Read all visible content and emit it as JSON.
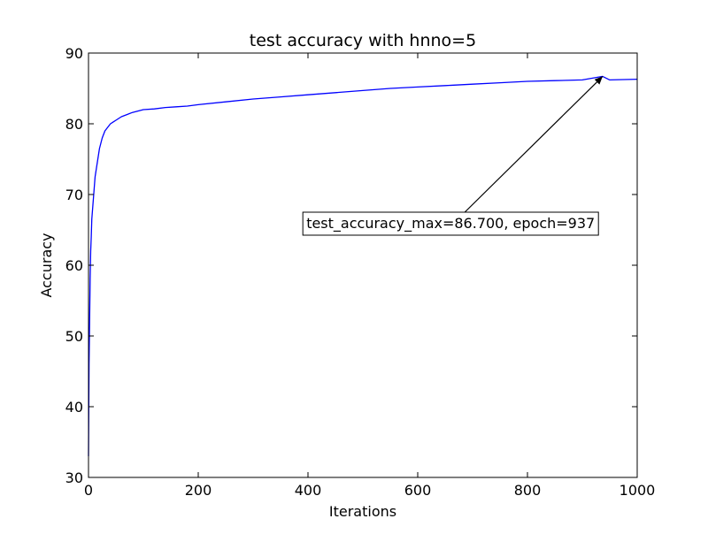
{
  "chart_data": {
    "type": "line",
    "title": "test accuracy with hnno=5",
    "xlabel": "Iterations",
    "ylabel": "Accuracy",
    "xlim": [
      0,
      1000
    ],
    "ylim": [
      30,
      90
    ],
    "xticks": [
      0,
      200,
      400,
      600,
      800,
      1000
    ],
    "yticks": [
      30,
      40,
      50,
      60,
      70,
      80,
      90
    ],
    "grid": false,
    "legend": "none",
    "series": [
      {
        "color": "#0000ff",
        "x": [
          0,
          1,
          2,
          3,
          4,
          5,
          6,
          8,
          10,
          12,
          15,
          18,
          20,
          25,
          30,
          35,
          40,
          50,
          60,
          70,
          80,
          90,
          100,
          120,
          140,
          160,
          180,
          200,
          250,
          300,
          350,
          400,
          450,
          500,
          550,
          600,
          650,
          700,
          750,
          800,
          850,
          900,
          937,
          950,
          1000
        ],
        "y": [
          33,
          46,
          52,
          58,
          62,
          64,
          66.5,
          68.5,
          70.5,
          72.5,
          74,
          75.5,
          76.5,
          78,
          79,
          79.5,
          80,
          80.5,
          81,
          81.3,
          81.6,
          81.8,
          82,
          82.1,
          82.3,
          82.4,
          82.5,
          82.7,
          83.1,
          83.5,
          83.8,
          84.1,
          84.4,
          84.7,
          85,
          85.2,
          85.4,
          85.6,
          85.8,
          86,
          86.1,
          86.2,
          86.7,
          86.2,
          86.3
        ]
      }
    ],
    "annotation": {
      "text": "test_accuracy_max=86.700, epoch=937",
      "x": 937,
      "y": 86.7,
      "text_x": 660,
      "text_y": 66
    }
  }
}
